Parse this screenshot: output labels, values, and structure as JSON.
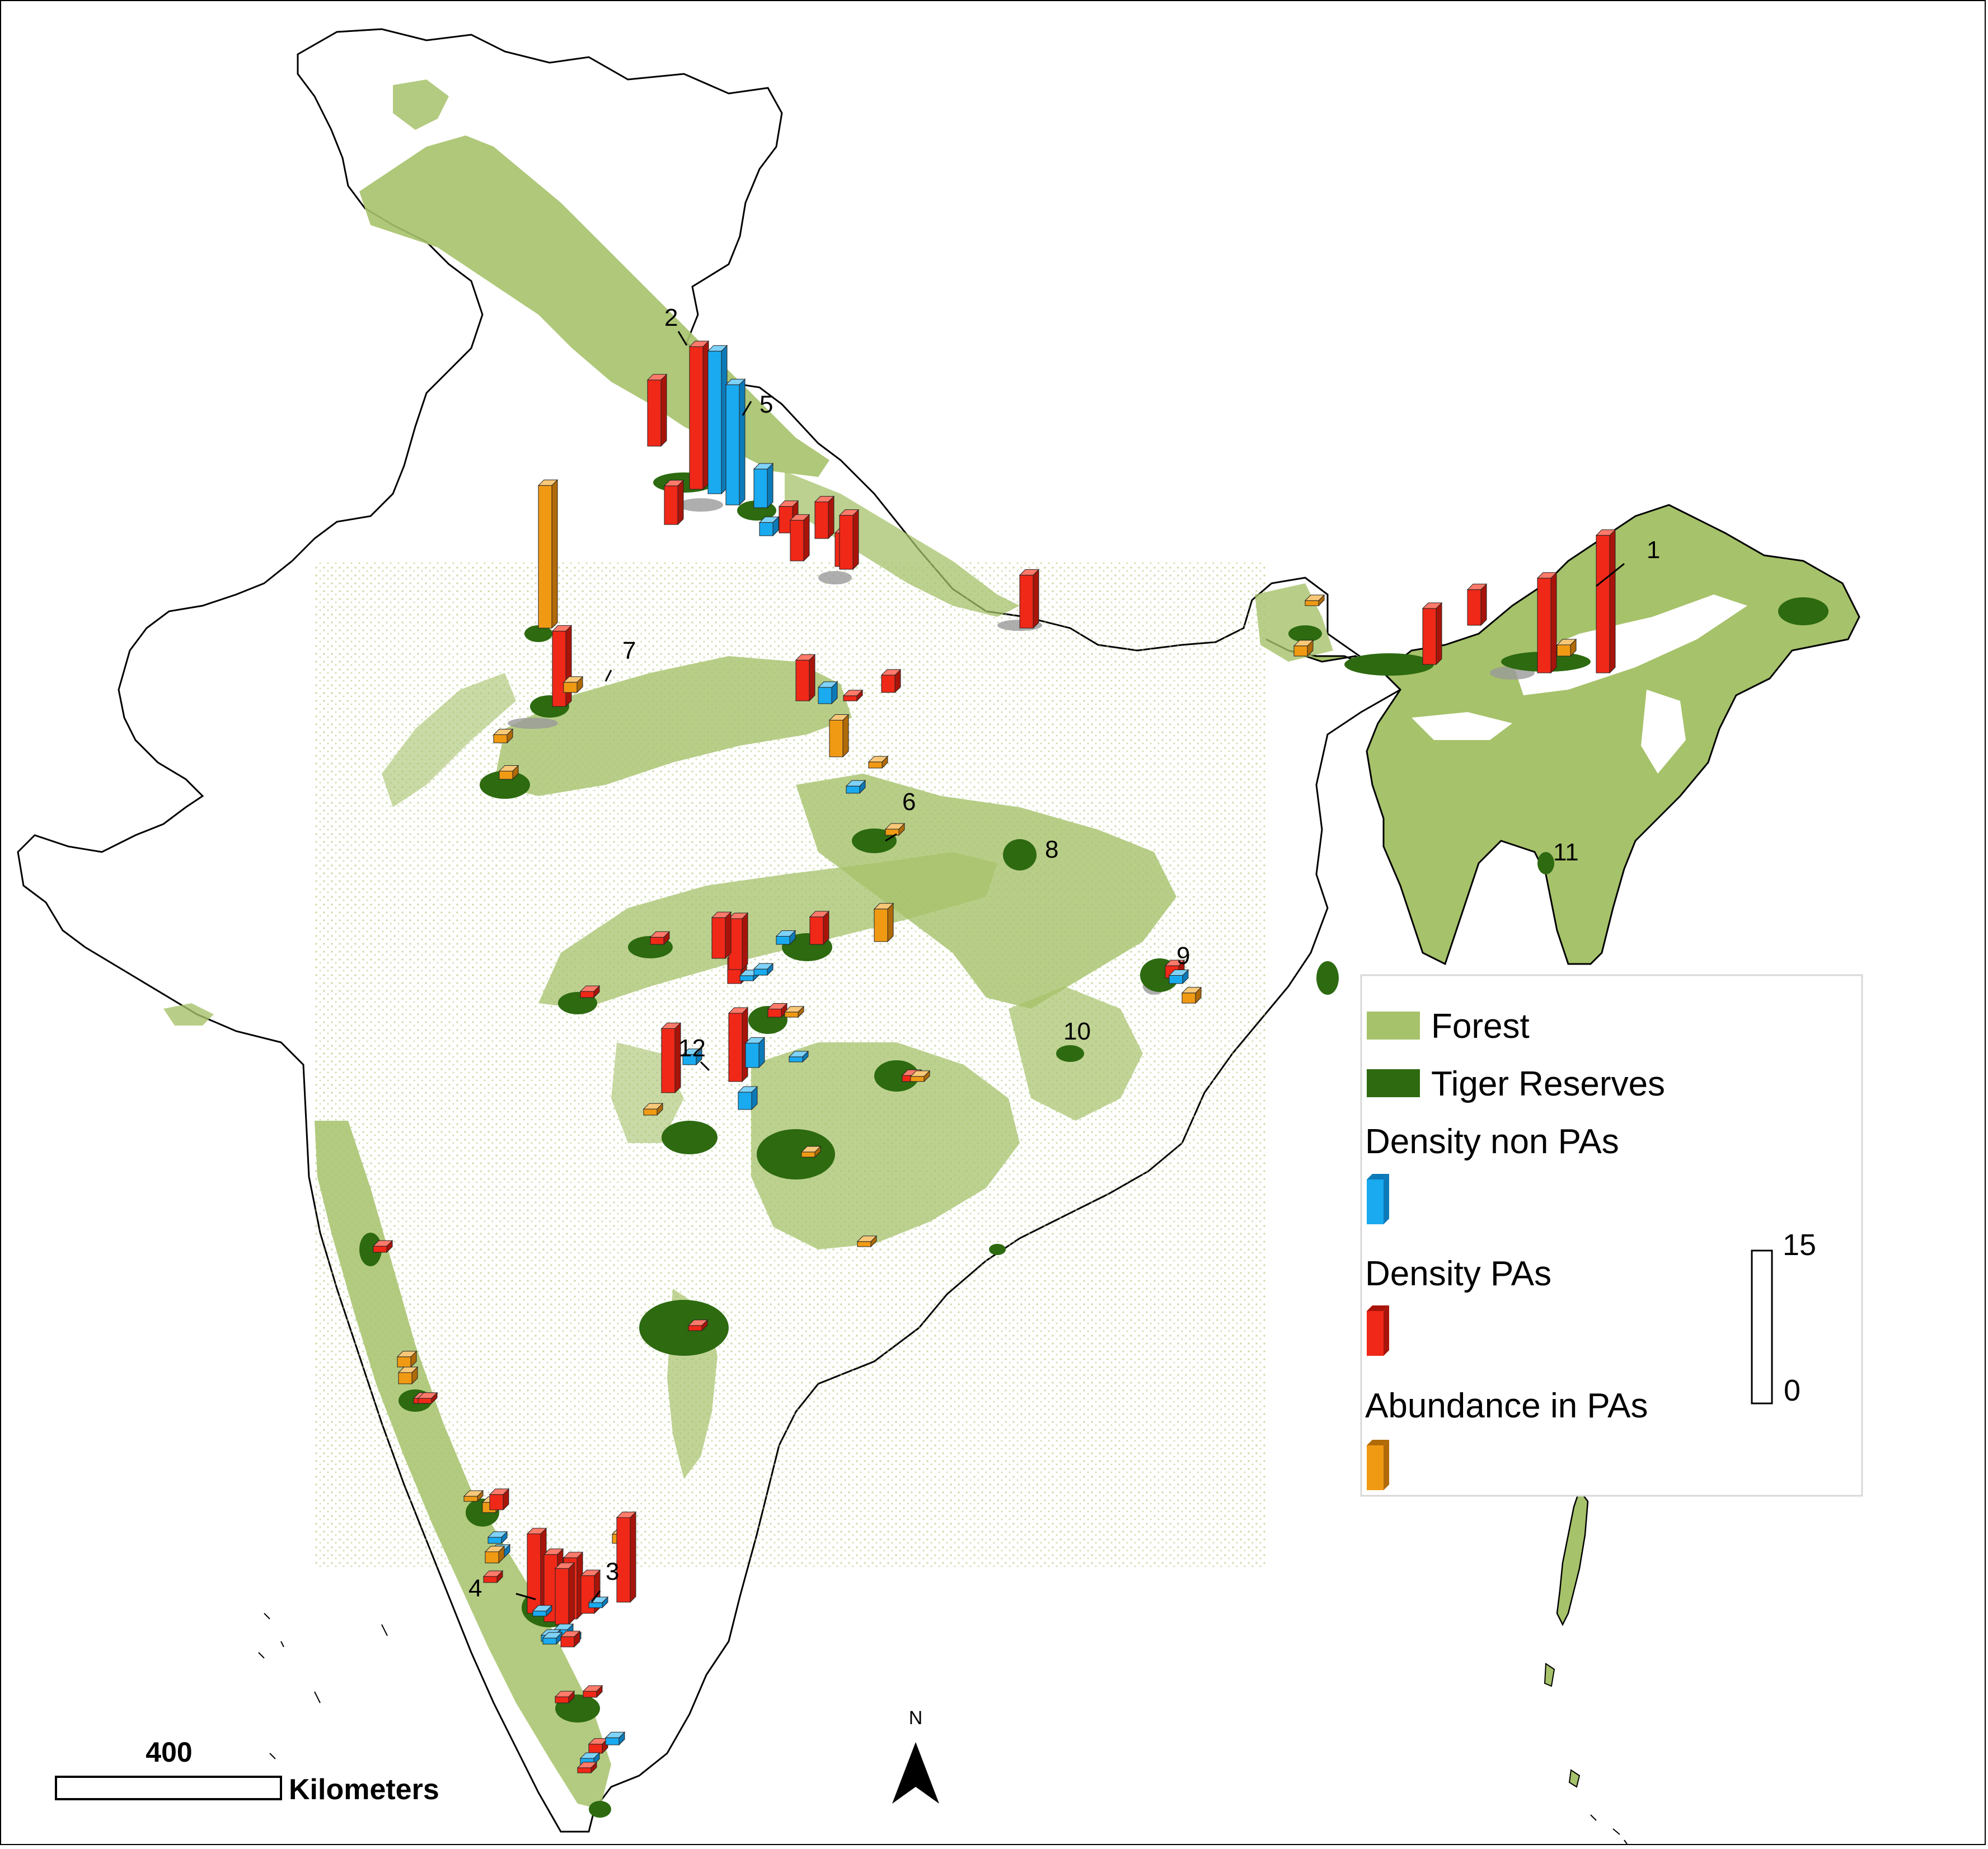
{
  "map": {
    "colors": {
      "forest": "#a6c26a",
      "forest_dark": "#8fb050",
      "tiger_reserve": "#2d6a10",
      "outline": "#000000",
      "density_non_pa": "#19aaf0",
      "density_pa": "#f02818",
      "abundance_pa": "#f09a14",
      "grey_patch": "#9a9a9a"
    },
    "site_labels": [
      "1",
      "2",
      "3",
      "4",
      "5",
      "6",
      "7",
      "8",
      "9",
      "10",
      "11",
      "12"
    ],
    "north_label": "N",
    "scale": {
      "value": "400",
      "unit": "Kilometers"
    }
  },
  "legend": {
    "forest": "Forest",
    "tiger_reserves": "Tiger Reserves",
    "density_non_pa": "Density non PAs",
    "density_pa": "Density PAs",
    "abundance_pa": "Abundance in PAs",
    "scale_max": "15",
    "scale_min": "0"
  },
  "chart_data": {
    "type": "bar",
    "title": "",
    "value_scale": [
      0,
      15
    ],
    "series": [
      {
        "name": "Density non PAs",
        "key": "non_pa"
      },
      {
        "name": "Density PAs",
        "key": "pa"
      },
      {
        "name": "Abundance in PAs",
        "key": "abund"
      }
    ],
    "bars": [
      {
        "series": "pa",
        "value": 13.5
      },
      {
        "series": "pa",
        "value": 9.3
      },
      {
        "series": "pa",
        "value": 5.5
      },
      {
        "series": "pa",
        "value": 5.2
      },
      {
        "series": "abund",
        "value": 1.1
      },
      {
        "series": "abund",
        "value": 1.0
      },
      {
        "series": "pa",
        "value": 3.5
      },
      {
        "series": "pa",
        "value": 6.5
      },
      {
        "series": "pa",
        "value": 14.0
      },
      {
        "series": "pa",
        "value": 3.8
      },
      {
        "series": "non_pa",
        "value": 1.3
      },
      {
        "series": "non_pa",
        "value": 14.0
      },
      {
        "series": "non_pa",
        "value": 11.8
      },
      {
        "series": "non_pa",
        "value": 3.8
      },
      {
        "series": "pa",
        "value": 2.6
      },
      {
        "series": "pa",
        "value": 4.0
      },
      {
        "series": "pa",
        "value": 3.6
      },
      {
        "series": "pa",
        "value": 3.3
      },
      {
        "series": "pa",
        "value": 5.3
      },
      {
        "series": "pa",
        "value": 1.7
      },
      {
        "series": "abund",
        "value": 0.5
      },
      {
        "series": "abund",
        "value": 14.0
      },
      {
        "series": "pa",
        "value": 7.4
      },
      {
        "series": "abund",
        "value": 1.0
      },
      {
        "series": "abund",
        "value": 0.8
      },
      {
        "series": "abund",
        "value": 0.8
      },
      {
        "series": "pa",
        "value": 1.2
      },
      {
        "series": "non_pa",
        "value": 0.8
      },
      {
        "series": "abund",
        "value": 1.0
      },
      {
        "series": "pa",
        "value": 4.0
      },
      {
        "series": "non_pa",
        "value": 1.6
      },
      {
        "series": "pa",
        "value": 0.5
      },
      {
        "series": "abund",
        "value": 0.6
      },
      {
        "series": "abund",
        "value": 3.6
      },
      {
        "series": "non_pa",
        "value": 0.7
      },
      {
        "series": "pa",
        "value": 0.7
      },
      {
        "series": "pa",
        "value": 2.7
      },
      {
        "series": "abund",
        "value": 3.2
      },
      {
        "series": "non_pa",
        "value": 0.8
      },
      {
        "series": "abund",
        "value": 0.6
      },
      {
        "series": "pa",
        "value": 0.6
      },
      {
        "series": "pa",
        "value": 2.5
      },
      {
        "series": "pa",
        "value": 5.0
      },
      {
        "series": "pa",
        "value": 4.0
      },
      {
        "series": "non_pa",
        "value": 0.5
      },
      {
        "series": "non_pa",
        "value": 0.6
      },
      {
        "series": "pa",
        "value": 6.3
      },
      {
        "series": "non_pa",
        "value": 1.0
      },
      {
        "series": "pa",
        "value": 6.7
      },
      {
        "series": "non_pa",
        "value": 2.4
      },
      {
        "series": "non_pa",
        "value": 1.7
      },
      {
        "series": "abund",
        "value": 0.6
      },
      {
        "series": "non_pa",
        "value": 0.5
      },
      {
        "series": "pa",
        "value": 0.8
      },
      {
        "series": "abund",
        "value": 0.5
      },
      {
        "series": "pa",
        "value": 0.6
      },
      {
        "series": "abund",
        "value": 0.5
      },
      {
        "series": "abund",
        "value": 0.5
      },
      {
        "series": "abund",
        "value": 0.5
      },
      {
        "series": "pa",
        "value": 0.5
      },
      {
        "series": "abund",
        "value": 1.0
      },
      {
        "series": "abund",
        "value": 1.1
      },
      {
        "series": "pa",
        "value": 0.6
      },
      {
        "series": "pa",
        "value": 0.5
      },
      {
        "series": "abund",
        "value": 0.5
      },
      {
        "series": "pa",
        "value": 0.5
      },
      {
        "series": "abund",
        "value": 1.0
      },
      {
        "series": "non_pa",
        "value": 0.6
      },
      {
        "series": "pa",
        "value": 1.5
      },
      {
        "series": "abund",
        "value": 0.9
      },
      {
        "series": "non_pa",
        "value": 0.7
      },
      {
        "series": "pa",
        "value": 8.3
      },
      {
        "series": "pa",
        "value": 7.8
      },
      {
        "series": "pa",
        "value": 6.6
      },
      {
        "series": "pa",
        "value": 6.0
      },
      {
        "series": "pa",
        "value": 5.5
      },
      {
        "series": "pa",
        "value": 3.7
      },
      {
        "series": "non_pa",
        "value": 0.5
      },
      {
        "series": "non_pa",
        "value": 0.5
      },
      {
        "series": "non_pa",
        "value": 0.6
      },
      {
        "series": "non_pa",
        "value": 0.6
      },
      {
        "series": "abund",
        "value": 1.1
      },
      {
        "series": "pa",
        "value": 0.6
      },
      {
        "series": "non_pa",
        "value": 0.6
      },
      {
        "series": "non_pa",
        "value": 0.6
      },
      {
        "series": "pa",
        "value": 1.0
      },
      {
        "series": "pa",
        "value": 0.6
      },
      {
        "series": "pa",
        "value": 0.6
      },
      {
        "series": "pa",
        "value": 0.9
      },
      {
        "series": "non_pa",
        "value": 0.7
      },
      {
        "series": "non_pa",
        "value": 0.6
      },
      {
        "series": "pa",
        "value": 0.5
      }
    ]
  }
}
